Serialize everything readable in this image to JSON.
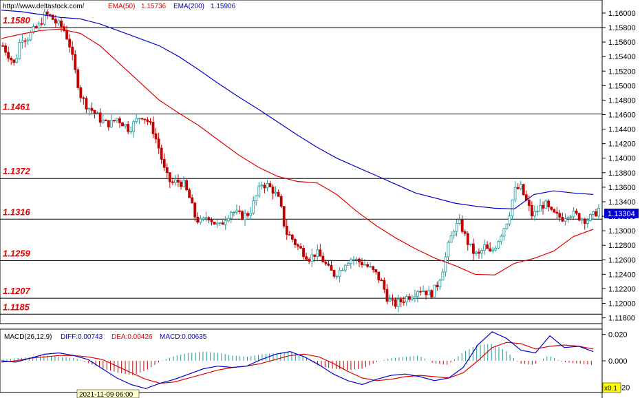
{
  "header": {
    "site": "http://www.deltastock.com/",
    "ema50_label": "EMA(50)",
    "ema50_value": "1.15736",
    "ema200_label": "EMA(200)",
    "ema200_value": "1.15906",
    "ema50_color": "#e00000",
    "ema200_color": "#0000cc"
  },
  "macd_header": {
    "title": "MACD(26,12,9)",
    "diff": "DIFF:0.00743",
    "dea": "DEA:0.00426",
    "macd": "MACD:0.00635"
  },
  "price_box": "1.13304",
  "date_box": "2021-11-09 06:00",
  "zoom_box": "x0.1",
  "chart_data": [
    {
      "type": "candlestick",
      "ylim": [
        1.1172,
        1.1618
      ],
      "y_ticks": [
        "1.16000",
        "1.15800",
        "1.15600",
        "1.15400",
        "1.15200",
        "1.15000",
        "1.14800",
        "1.14600",
        "1.14400",
        "1.14200",
        "1.14000",
        "1.13800",
        "1.13600",
        "1.13400",
        "1.13200",
        "1.13000",
        "1.12800",
        "1.12600",
        "1.12400",
        "1.12200",
        "1.12000",
        "1.11800"
      ],
      "levels": [
        "1.1580",
        "1.1461",
        "1.1372",
        "1.1316",
        "1.1259",
        "1.1207",
        "1.1185"
      ],
      "last_price": 1.13304,
      "ema50": [
        1.1565,
        1.1571,
        1.1576,
        1.1578,
        1.1572,
        1.1555,
        1.153,
        1.1505,
        1.148,
        1.1462,
        1.1445,
        1.1425,
        1.1405,
        1.1388,
        1.1375,
        1.1368,
        1.1366,
        1.135,
        1.1327,
        1.1307,
        1.129,
        1.1275,
        1.1262,
        1.1252,
        1.124,
        1.1239,
        1.1255,
        1.1262,
        1.1272,
        1.1292,
        1.1302
      ],
      "ema200": [
        1.1604,
        1.1602,
        1.1598,
        1.1594,
        1.1592,
        1.1585,
        1.1575,
        1.1565,
        1.1555,
        1.154,
        1.1522,
        1.1503,
        1.1485,
        1.1468,
        1.145,
        1.1432,
        1.1415,
        1.14,
        1.1388,
        1.1376,
        1.1364,
        1.1352,
        1.1345,
        1.1338,
        1.1334,
        1.1331,
        1.133,
        1.135,
        1.1355,
        1.1352,
        1.135
      ],
      "ohlc_path": [
        1.1555,
        1.1542,
        1.1528,
        1.1568,
        1.1565,
        1.1575,
        1.1582,
        1.1598,
        1.1595,
        1.1585,
        1.158,
        1.156,
        1.152,
        1.1485,
        1.1472,
        1.1465,
        1.1455,
        1.1448,
        1.1448,
        1.1455,
        1.1448,
        1.144,
        1.145,
        1.146,
        1.1452,
        1.1438,
        1.1412,
        1.1378,
        1.1365,
        1.1368,
        1.1365,
        1.1345,
        1.1318,
        1.131,
        1.1322,
        1.1312,
        1.1305,
        1.1318,
        1.1328,
        1.1322,
        1.132,
        1.1325,
        1.1345,
        1.1365,
        1.1362,
        1.1355,
        1.134,
        1.1298,
        1.129,
        1.1278,
        1.127,
        1.1262,
        1.127,
        1.1262,
        1.1248,
        1.124,
        1.1245,
        1.1258,
        1.1262,
        1.1258,
        1.1255,
        1.1248,
        1.124,
        1.1228,
        1.1205,
        1.1198,
        1.1202,
        1.1208,
        1.1212,
        1.122,
        1.1218,
        1.1212,
        1.1222,
        1.1245,
        1.1278,
        1.1305,
        1.131,
        1.1288,
        1.1272,
        1.1265,
        1.1278,
        1.1268,
        1.1282,
        1.13,
        1.1318,
        1.1355,
        1.136,
        1.134,
        1.132,
        1.133,
        1.1338,
        1.1325,
        1.132,
        1.1318,
        1.1325,
        1.1322,
        1.1318,
        1.1315,
        1.132,
        1.133
      ]
    },
    {
      "type": "macd",
      "ylim": [
        -0.024,
        0.024
      ],
      "y_ticks": [
        "0.020",
        "0.000",
        "-0.020"
      ],
      "diff": [
        0.0,
        -0.001,
        0.002,
        0.005,
        0.006,
        0.004,
        0.001,
        -0.006,
        -0.013,
        -0.018,
        -0.021,
        -0.017,
        -0.014,
        -0.01,
        -0.006,
        -0.004,
        -0.005,
        -0.004,
        0.001,
        0.005,
        0.007,
        0.003,
        -0.003,
        -0.01,
        -0.015,
        -0.018,
        -0.014,
        -0.011,
        -0.01,
        -0.012,
        -0.015,
        -0.013,
        -0.005,
        0.012,
        0.022,
        0.017,
        0.008,
        0.006,
        0.019,
        0.01,
        0.011,
        0.007
      ],
      "dea": [
        -0.001,
        0.0,
        0.002,
        0.003,
        0.004,
        0.004,
        0.003,
        0.001,
        -0.004,
        -0.009,
        -0.014,
        -0.017,
        -0.016,
        -0.013,
        -0.01,
        -0.007,
        -0.005,
        -0.004,
        -0.002,
        0.001,
        0.004,
        0.005,
        0.003,
        -0.002,
        -0.008,
        -0.013,
        -0.015,
        -0.014,
        -0.012,
        -0.011,
        -0.012,
        -0.013,
        -0.009,
        0.0,
        0.01,
        0.014,
        0.013,
        0.009,
        0.011,
        0.012,
        0.011,
        0.009
      ],
      "hist": [
        0.001,
        0.002,
        0.003,
        0.004,
        0.003,
        0.002,
        -0.002,
        -0.006,
        -0.009,
        -0.011,
        -0.007,
        0.0,
        0.004,
        0.006,
        0.007,
        0.006,
        0.004,
        0.003,
        0.005,
        0.006,
        0.007,
        0.003,
        -0.004,
        -0.006,
        -0.007,
        -0.006,
        -0.001,
        0.002,
        0.003,
        0.004,
        -0.002,
        -0.003,
        0.006,
        0.012,
        0.013,
        0.008,
        -0.002,
        -0.003,
        0.004,
        -0.001,
        -0.002,
        -0.003
      ]
    }
  ]
}
